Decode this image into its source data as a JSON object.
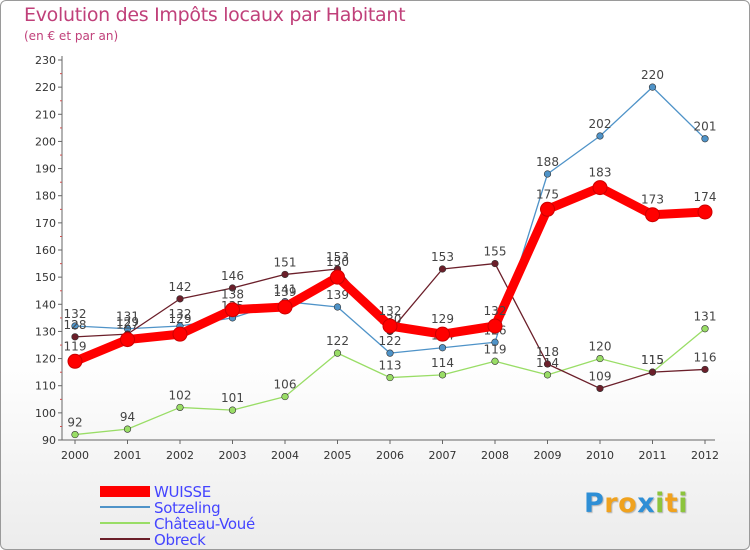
{
  "chart_data": {
    "type": "line",
    "title": "Evolution des Impôts locaux par Habitant",
    "subtitle": "(en € et par an)",
    "categories": [
      "2000",
      "2001",
      "2002",
      "2003",
      "2004",
      "2005",
      "2006",
      "2007",
      "2008",
      "2009",
      "2010",
      "2011",
      "2012"
    ],
    "ylim": [
      90,
      230
    ],
    "yticks": [
      "90",
      "100",
      "110",
      "120",
      "130",
      "140",
      "150",
      "160",
      "170",
      "180",
      "190",
      "200",
      "210",
      "220",
      "230"
    ],
    "grid": false,
    "legend_position": "bottom-left",
    "series": [
      {
        "name": "Sotzeling",
        "color": "#4f93c8",
        "values": [
          132,
          131,
          132,
          135,
          141,
          139,
          122,
          124,
          126,
          188,
          202,
          220,
          201
        ]
      },
      {
        "name": "Château-Voué",
        "color": "#99dd66",
        "values": [
          92,
          94,
          102,
          101,
          106,
          122,
          113,
          114,
          119,
          114,
          120,
          115,
          131
        ]
      },
      {
        "name": "Obreck",
        "color": "#6b1f2a",
        "values": [
          128,
          129,
          142,
          146,
          151,
          153,
          130,
          153,
          155,
          118,
          109,
          115,
          116
        ]
      },
      {
        "name": "WUISSE",
        "color": "#ff0000",
        "values": [
          119,
          127,
          129,
          138,
          139,
          150,
          132,
          129,
          132,
          175,
          183,
          173,
          174
        ]
      }
    ],
    "legend_order": [
      "WUISSE",
      "Sotzeling",
      "Château-Voué",
      "Obreck"
    ]
  },
  "logo": {
    "letters": [
      "P",
      "r",
      "o",
      "x",
      "i",
      "t",
      "i"
    ],
    "colors": [
      "#2e8fd6",
      "#f0a21e",
      "#f0a21e",
      "#2e8fd6",
      "#8cc43c",
      "#f0a21e",
      "#8cc43c"
    ]
  }
}
